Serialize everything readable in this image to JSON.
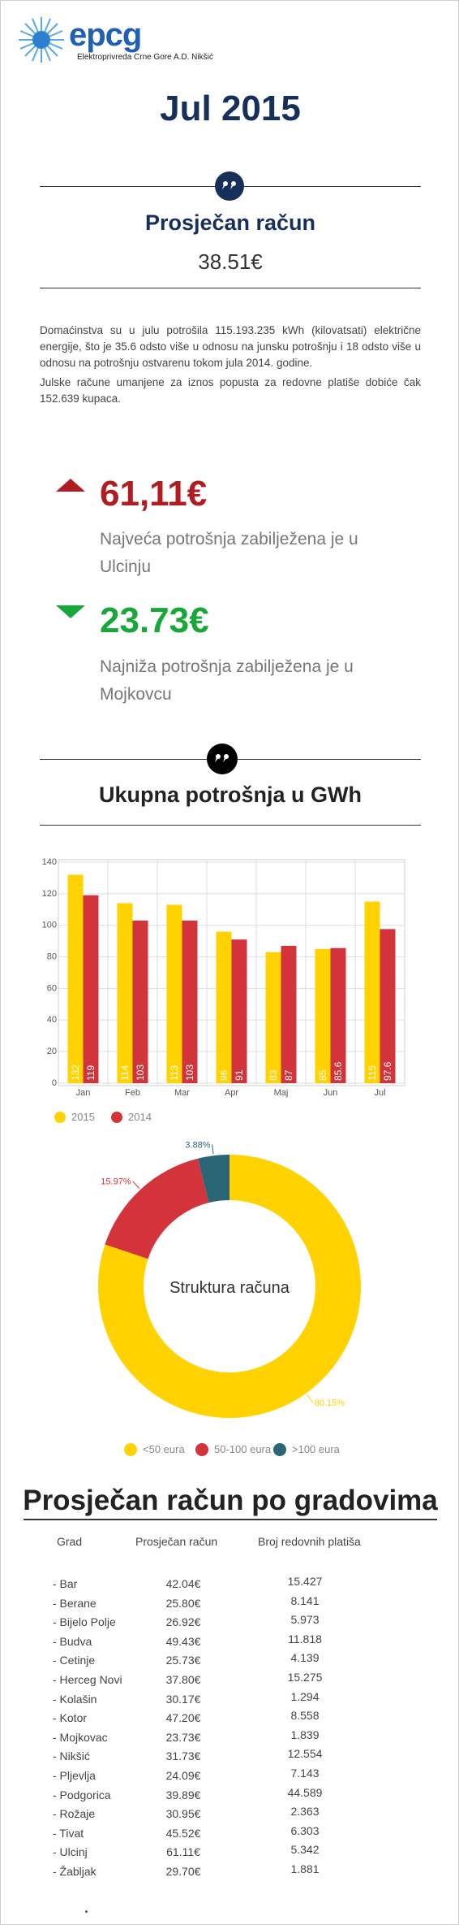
{
  "header": {
    "logo": "epcg",
    "company": "Elektroprivreda Crne Gore A.D. Nikšić"
  },
  "title": "Jul 2015",
  "summary": {
    "heading": "Prosječan račun",
    "value": "38.51€"
  },
  "intro": [
    "Domaćinstva su u julu potrošila 115.193.235 kWh (kilovatsati) električne energije, što je 35.6 odsto više u odnosu na junsku potrošnju i 18 odsto više u odnosu na potrošnju ostvarenu tokom jula 2014. godine.",
    "Julske račune umanjene za iznos popusta za redovne platiše dobiće čak 152.639 kupaca."
  ],
  "extremes": [
    {
      "value": "61,11€",
      "text": "Najveća potrošnja zabilježena je u Ulcinju"
    },
    {
      "value": "23.73€",
      "text": "Najniža potrošnja zabilježena je u Mojkovcu"
    }
  ],
  "chart_data": [
    {
      "type": "bar",
      "title": "Ukupna potrošnja u GWh",
      "categories": [
        "Jan",
        "Feb",
        "Mar",
        "Apr",
        "Maj",
        "Jun",
        "Jul"
      ],
      "series": [
        {
          "name": "2015",
          "color": "#ffd200",
          "values": [
            132,
            114,
            113,
            96,
            83,
            85,
            115
          ]
        },
        {
          "name": "2014",
          "color": "#d3343b",
          "values": [
            119,
            103,
            103,
            91,
            87,
            85.6,
            97.6
          ]
        }
      ],
      "ylim": [
        0,
        140
      ],
      "yticks": [
        0,
        20,
        40,
        60,
        80,
        100,
        120,
        140
      ],
      "grid": true,
      "legend": "bottom-left"
    },
    {
      "type": "donut",
      "title": "Struktura računa",
      "categories": [
        "<50 eura",
        "50-100 eura",
        ">100 eura"
      ],
      "values": [
        80.15,
        15.97,
        3.88
      ],
      "value_labels": [
        "80.15%",
        "15.97%",
        "3.88%"
      ],
      "colors": [
        "#ffd200",
        "#d3343b",
        "#2b6677"
      ],
      "legend": "bottom"
    }
  ],
  "table": {
    "title": "Prosječan račun po gradovima",
    "header": [
      "Grad",
      "Prosječan račun",
      "Broj redovnih platiša"
    ],
    "rows": [
      [
        "- Bar",
        "42.04€",
        "15.427"
      ],
      [
        "- Berane",
        "25.80€",
        "8.141"
      ],
      [
        "- Bijelo Polje",
        "26.92€",
        "5.973"
      ],
      [
        "- Budva",
        "49.43€",
        "11.818"
      ],
      [
        "- Cetinje",
        "25.73€",
        "4.139"
      ],
      [
        "- Herceg Novi",
        "37.80€",
        "15.275"
      ],
      [
        "- Kolašin",
        "30.17€",
        "1.294"
      ],
      [
        "- Kotor",
        "47.20€",
        "8.558"
      ],
      [
        "- Mojkovac",
        "23.73€",
        "1.839"
      ],
      [
        "- Nikšić",
        "31.73€",
        "12.554"
      ],
      [
        "- Pljevlja",
        "24.09€",
        "7.143"
      ],
      [
        "- Podgorica",
        "39.89€",
        "44.589"
      ],
      [
        "- Rožaje",
        "30.95€",
        "2.363"
      ],
      [
        "- Tivat",
        "45.52€",
        "6.303"
      ],
      [
        "- Ulcinj",
        "61.11€",
        "5.342"
      ],
      [
        "- Žabljak",
        "29.70€",
        "1.881"
      ]
    ]
  }
}
